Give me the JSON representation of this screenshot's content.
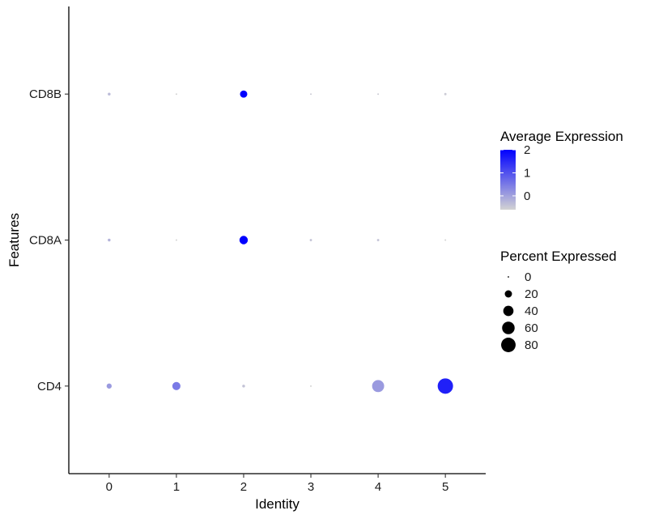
{
  "chart_data": {
    "type": "dot",
    "title": "",
    "xlabel": "Identity",
    "ylabel": "Features",
    "x_categories": [
      "0",
      "1",
      "2",
      "3",
      "4",
      "5"
    ],
    "y_categories": [
      "CD4",
      "CD8A",
      "CD8B"
    ],
    "points": [
      {
        "identity": "0",
        "feature": "CD8B",
        "avg_exp": -0.3,
        "pct": 3
      },
      {
        "identity": "1",
        "feature": "CD8B",
        "avg_exp": -0.6,
        "pct": 1
      },
      {
        "identity": "2",
        "feature": "CD8B",
        "avg_exp": 2.0,
        "pct": 20
      },
      {
        "identity": "3",
        "feature": "CD8B",
        "avg_exp": -0.5,
        "pct": 1
      },
      {
        "identity": "4",
        "feature": "CD8B",
        "avg_exp": -0.5,
        "pct": 1
      },
      {
        "identity": "5",
        "feature": "CD8B",
        "avg_exp": -0.5,
        "pct": 2
      },
      {
        "identity": "0",
        "feature": "CD8A",
        "avg_exp": -0.2,
        "pct": 3
      },
      {
        "identity": "1",
        "feature": "CD8A",
        "avg_exp": -0.6,
        "pct": 1
      },
      {
        "identity": "2",
        "feature": "CD8A",
        "avg_exp": 2.0,
        "pct": 27
      },
      {
        "identity": "3",
        "feature": "CD8A",
        "avg_exp": -0.4,
        "pct": 2
      },
      {
        "identity": "4",
        "feature": "CD8A",
        "avg_exp": -0.4,
        "pct": 2
      },
      {
        "identity": "5",
        "feature": "CD8A",
        "avg_exp": -0.6,
        "pct": 1
      },
      {
        "identity": "0",
        "feature": "CD4",
        "avg_exp": 0.1,
        "pct": 10
      },
      {
        "identity": "1",
        "feature": "CD4",
        "avg_exp": 0.5,
        "pct": 25
      },
      {
        "identity": "2",
        "feature": "CD4",
        "avg_exp": -0.4,
        "pct": 3
      },
      {
        "identity": "3",
        "feature": "CD4",
        "avg_exp": -0.6,
        "pct": 1
      },
      {
        "identity": "4",
        "feature": "CD4",
        "avg_exp": 0.1,
        "pct": 55
      },
      {
        "identity": "5",
        "feature": "CD4",
        "avg_exp": 1.6,
        "pct": 90
      }
    ],
    "color_scale": {
      "title": "Average Expression",
      "low_color": "#d3d3d3",
      "high_color": "#0000ff",
      "min": -0.6,
      "max": 2.0,
      "ticks": [
        "0",
        "1",
        "2"
      ],
      "tick_values": [
        0,
        1,
        2
      ]
    },
    "size_scale": {
      "title": "Percent Expressed",
      "labels": [
        "0",
        "20",
        "40",
        "60",
        "80"
      ],
      "values": [
        0,
        20,
        40,
        60,
        80
      ],
      "max_pct": 90
    },
    "grid": false
  }
}
